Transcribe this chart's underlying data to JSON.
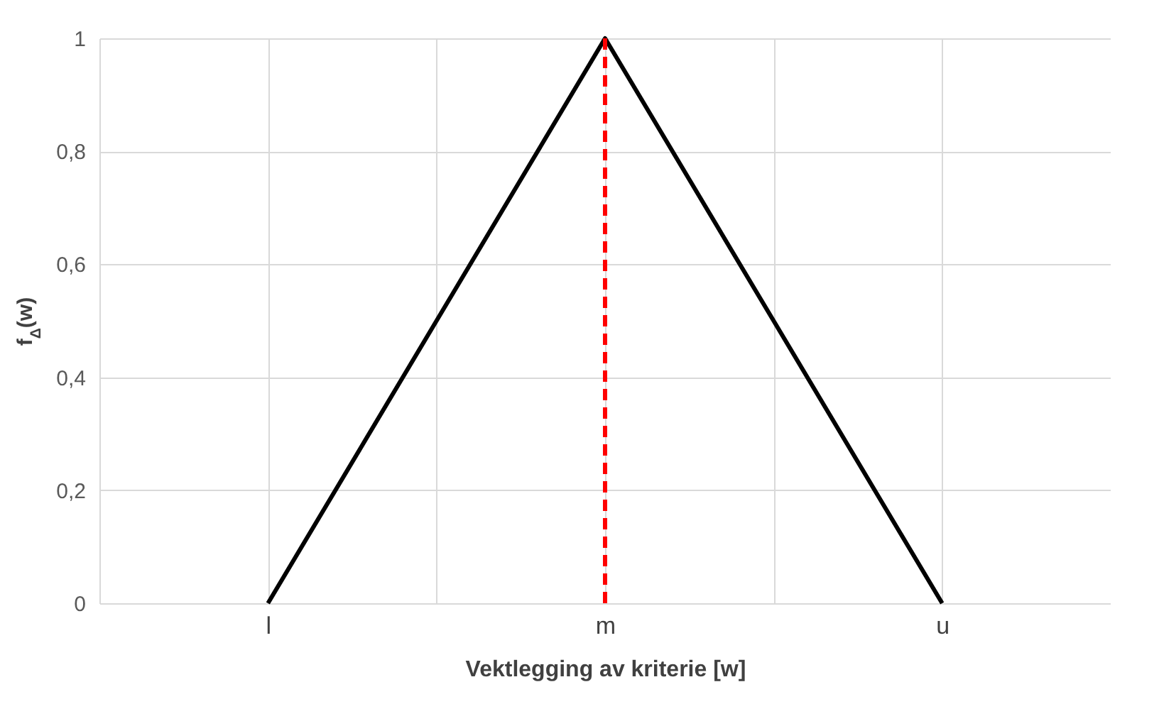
{
  "chart_data": {
    "type": "line",
    "xlabel": "Vektlegging av kriterie [w]",
    "ylabel": "f$_{Δ}$(w)",
    "categories": [
      null,
      "l",
      null,
      "m",
      null,
      "u",
      null
    ],
    "series": [
      {
        "color": "#000000",
        "values": [
          null,
          0,
          0.5,
          1,
          0.5,
          0,
          null
        ]
      }
    ],
    "ylim": [
      0,
      1
    ],
    "yticks": [
      0,
      {
        "value": 0.2,
        "label": "0,2"
      },
      {
        "value": 0.4,
        "label": "0,4"
      },
      {
        "value": 0.6,
        "label": "0,6"
      },
      {
        "value": 0.8,
        "label": "0,8"
      },
      1
    ],
    "ref_lines": [
      {
        "axis": "x",
        "value": "m",
        "color": "#ff0000",
        "line_style": "dashed"
      }
    ],
    "grid": true,
    "marker": "none",
    "line_style": "solid"
  }
}
